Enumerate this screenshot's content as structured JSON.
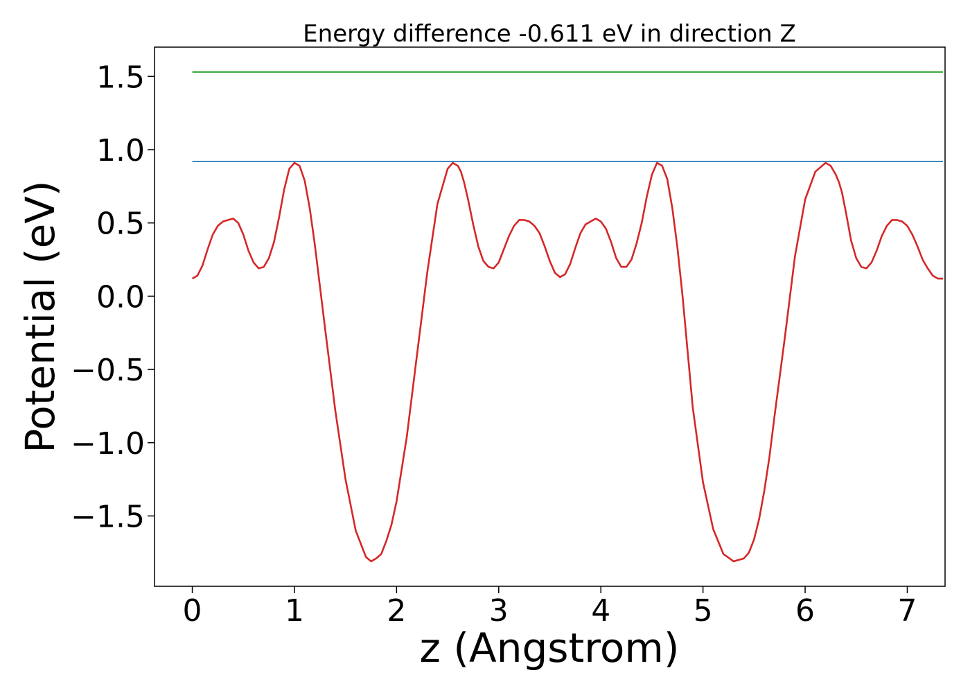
{
  "chart_data": {
    "type": "line",
    "title": "Energy difference -0.611 eV in direction Z",
    "xlabel": "z (Angstrom)",
    "ylabel": "Potential (eV)",
    "xlim": [
      -0.37,
      7.37
    ],
    "ylim": [
      -1.98,
      1.7
    ],
    "x_ticks": [
      0,
      1,
      2,
      3,
      4,
      5,
      6,
      7
    ],
    "x_tick_labels": [
      "0",
      "1",
      "2",
      "3",
      "4",
      "5",
      "6",
      "7"
    ],
    "y_ticks": [
      -1.5,
      -1.0,
      -0.5,
      0.0,
      0.5,
      1.0,
      1.5
    ],
    "y_tick_labels": [
      "−1.5",
      "−1.0",
      "−0.5",
      "0.0",
      "0.5",
      "1.0",
      "1.5"
    ],
    "grid": false,
    "legend": "none",
    "series": [
      {
        "color": "#d62728",
        "x": [
          0.0,
          0.05,
          0.1,
          0.15,
          0.2,
          0.25,
          0.3,
          0.35,
          0.4,
          0.45,
          0.5,
          0.55,
          0.6,
          0.65,
          0.7,
          0.75,
          0.8,
          0.85,
          0.9,
          0.95,
          1.0,
          1.05,
          1.1,
          1.15,
          1.2,
          1.3,
          1.4,
          1.5,
          1.6,
          1.7,
          1.75,
          1.8,
          1.85,
          1.9,
          1.95,
          2.0,
          2.1,
          2.2,
          2.3,
          2.4,
          2.5,
          2.55,
          2.6,
          2.63,
          2.66,
          2.7,
          2.75,
          2.8,
          2.85,
          2.9,
          2.95,
          3.0,
          3.05,
          3.1,
          3.15,
          3.2,
          3.25,
          3.3,
          3.35,
          3.4,
          3.45,
          3.5,
          3.55,
          3.6,
          3.65,
          3.7,
          3.75,
          3.8,
          3.85,
          3.9,
          3.95,
          4.0,
          4.05,
          4.1,
          4.15,
          4.2,
          4.25,
          4.3,
          4.35,
          4.4,
          4.45,
          4.5,
          4.55,
          4.6,
          4.65,
          4.7,
          4.75,
          4.8,
          4.85,
          4.9,
          5.0,
          5.1,
          5.2,
          5.3,
          5.4,
          5.45,
          5.5,
          5.55,
          5.6,
          5.65,
          5.7,
          5.8,
          5.9,
          6.0,
          6.1,
          6.2,
          6.25,
          6.3,
          6.33,
          6.36,
          6.4,
          6.45,
          6.5,
          6.55,
          6.6,
          6.65,
          6.7,
          6.75,
          6.8,
          6.85,
          6.9,
          6.95,
          7.0,
          7.05,
          7.1,
          7.15,
          7.2,
          7.25,
          7.3,
          7.35
        ],
        "y": [
          0.12,
          0.14,
          0.21,
          0.32,
          0.42,
          0.48,
          0.51,
          0.52,
          0.53,
          0.5,
          0.42,
          0.31,
          0.23,
          0.19,
          0.2,
          0.26,
          0.37,
          0.54,
          0.73,
          0.87,
          0.91,
          0.89,
          0.79,
          0.6,
          0.35,
          -0.22,
          -0.78,
          -1.25,
          -1.6,
          -1.78,
          -1.81,
          -1.79,
          -1.76,
          -1.67,
          -1.56,
          -1.4,
          -0.96,
          -0.4,
          0.16,
          0.63,
          0.87,
          0.91,
          0.89,
          0.85,
          0.78,
          0.66,
          0.49,
          0.34,
          0.24,
          0.2,
          0.19,
          0.23,
          0.32,
          0.41,
          0.48,
          0.52,
          0.52,
          0.51,
          0.48,
          0.43,
          0.34,
          0.24,
          0.16,
          0.13,
          0.15,
          0.22,
          0.33,
          0.43,
          0.49,
          0.51,
          0.53,
          0.51,
          0.46,
          0.37,
          0.26,
          0.2,
          0.2,
          0.25,
          0.36,
          0.5,
          0.68,
          0.83,
          0.91,
          0.89,
          0.8,
          0.6,
          0.33,
          0.0,
          -0.38,
          -0.76,
          -1.27,
          -1.59,
          -1.76,
          -1.81,
          -1.79,
          -1.75,
          -1.66,
          -1.52,
          -1.33,
          -1.1,
          -0.82,
          -0.29,
          0.27,
          0.66,
          0.85,
          0.91,
          0.89,
          0.83,
          0.78,
          0.71,
          0.57,
          0.38,
          0.26,
          0.2,
          0.19,
          0.23,
          0.31,
          0.41,
          0.48,
          0.52,
          0.52,
          0.51,
          0.48,
          0.42,
          0.34,
          0.25,
          0.19,
          0.14,
          0.12,
          0.12
        ]
      },
      {
        "color": "#1f77b4",
        "x": [
          0.0,
          7.35
        ],
        "y": [
          0.92,
          0.92
        ]
      },
      {
        "color": "#2ca02c",
        "x": [
          0.0,
          7.35
        ],
        "y": [
          1.53,
          1.53
        ]
      }
    ]
  }
}
